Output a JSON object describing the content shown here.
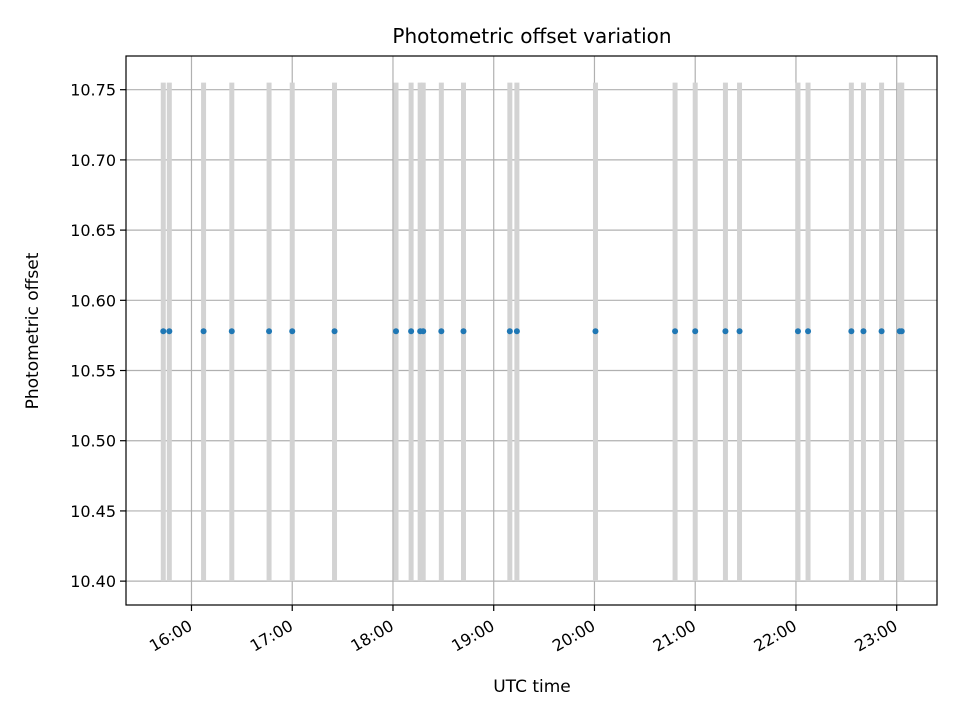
{
  "chart_data": {
    "type": "scatter",
    "title": "Photometric offset variation",
    "xlabel": "UTC time",
    "ylabel": "Photometric offset",
    "grid": true,
    "x_ticks": [
      "16:00",
      "17:00",
      "18:00",
      "19:00",
      "20:00",
      "21:00",
      "22:00",
      "23:00"
    ],
    "x_tick_hours": [
      16,
      17,
      18,
      19,
      20,
      21,
      22,
      23
    ],
    "xlim_hours": [
      15.35,
      23.4
    ],
    "y_ticks": [
      "10.40",
      "10.45",
      "10.50",
      "10.55",
      "10.60",
      "10.65",
      "10.70",
      "10.75"
    ],
    "y_tick_values": [
      10.4,
      10.45,
      10.5,
      10.55,
      10.6,
      10.65,
      10.7,
      10.75
    ],
    "ylim": [
      10.383,
      10.774
    ],
    "error_bar": {
      "low": 10.4,
      "high": 10.755
    },
    "marker_color": "#1f77b4",
    "errorbar_color": "#d3d3d3",
    "series": [
      {
        "x_hours": [
          15.72,
          15.78,
          16.12,
          16.4,
          16.77,
          17.0,
          17.42,
          18.03,
          18.18,
          18.27,
          18.3,
          18.48,
          18.7,
          19.16,
          19.23,
          20.01,
          20.8,
          21.0,
          21.3,
          21.44,
          22.02,
          22.12,
          22.55,
          22.67,
          22.85,
          23.03,
          23.05
        ],
        "y": [
          10.578,
          10.578,
          10.578,
          10.578,
          10.578,
          10.578,
          10.578,
          10.578,
          10.578,
          10.578,
          10.578,
          10.578,
          10.578,
          10.578,
          10.578,
          10.578,
          10.578,
          10.578,
          10.578,
          10.578,
          10.578,
          10.578,
          10.578,
          10.578,
          10.578,
          10.578,
          10.578
        ]
      }
    ]
  }
}
